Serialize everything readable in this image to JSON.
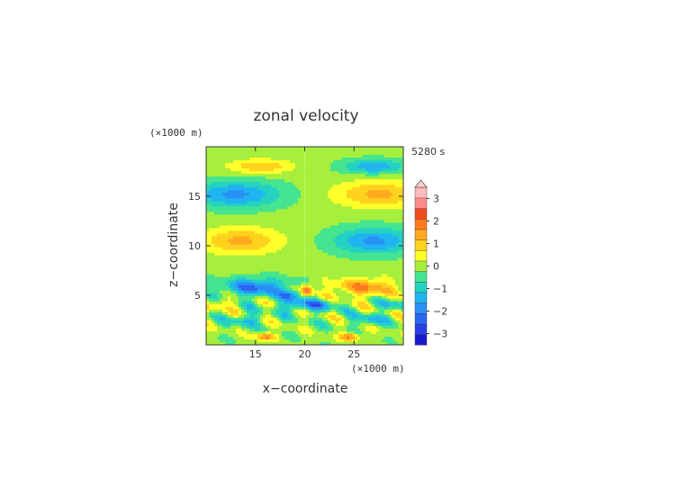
{
  "chart_data": {
    "type": "heatmap",
    "title": "zonal velocity",
    "time_label": "5280 s",
    "xlabel": "x−coordinate",
    "ylabel": "z−coordinate",
    "x_unit": "(×1000 m)",
    "y_unit": "(×1000 m)",
    "xlim": [
      10,
      30
    ],
    "ylim": [
      0,
      20
    ],
    "x_ticks": [
      15,
      20,
      25
    ],
    "y_ticks": [
      5,
      10,
      15
    ],
    "x_tick_labels": [
      "15",
      "20",
      "25"
    ],
    "y_tick_labels": [
      "5",
      "10",
      "15"
    ],
    "colorbar": {
      "levels": [
        -3.5,
        -3,
        -2.5,
        -2,
        -1.5,
        -1,
        -0.5,
        0,
        0.5,
        1,
        1.5,
        2,
        2.5,
        3,
        3.5
      ],
      "colors": [
        "#1a1acc",
        "#2a40e6",
        "#2a66f0",
        "#2a90f5",
        "#20b4f0",
        "#24d2c2",
        "#44e490",
        "#a6ef3c",
        "#ffff2a",
        "#ffd21e",
        "#ffaa1e",
        "#ff7a1e",
        "#f04a1e",
        "#ff8c8c",
        "#ffbaba"
      ],
      "tick_values": [
        3,
        2,
        1,
        0,
        -1,
        -2,
        -3
      ],
      "tick_labels": [
        "3",
        "2",
        "1",
        "0",
        "−1",
        "−2",
        "−3"
      ],
      "extend": "max"
    },
    "features": [
      {
        "x": 15.5,
        "z": 18.0,
        "sx": 3.2,
        "sz": 0.7,
        "v": 1.3
      },
      {
        "x": 27.0,
        "z": 18.0,
        "sx": 3.0,
        "sz": 0.7,
        "v": -1.6
      },
      {
        "x": 13.0,
        "z": 15.2,
        "sx": 4.5,
        "sz": 1.3,
        "v": -1.8
      },
      {
        "x": 27.5,
        "z": 15.2,
        "sx": 4.5,
        "sz": 1.3,
        "v": 1.5
      },
      {
        "x": 13.5,
        "z": 10.5,
        "sx": 4.0,
        "sz": 1.3,
        "v": 1.5
      },
      {
        "x": 27.0,
        "z": 10.5,
        "sx": 4.0,
        "sz": 1.3,
        "v": -1.8
      },
      {
        "x": 15.0,
        "z": 5.8,
        "sx": 3.2,
        "sz": 0.9,
        "v": -2.2
      },
      {
        "x": 26.0,
        "z": 5.8,
        "sx": 3.2,
        "sz": 0.9,
        "v": 1.8
      },
      {
        "x": 20.2,
        "z": 5.5,
        "sx": 0.6,
        "sz": 0.6,
        "v": 2.4
      },
      {
        "x": 18.5,
        "z": 5.0,
        "sx": 1.0,
        "sz": 0.5,
        "v": -1.8
      },
      {
        "x": 19.0,
        "z": 4.0,
        "sx": 1.5,
        "sz": 0.6,
        "v": -1.7
      },
      {
        "x": 21.5,
        "z": 4.0,
        "sx": 1.5,
        "sz": 0.6,
        "v": -1.5
      },
      {
        "x": 16.0,
        "z": 0.8,
        "sx": 1.0,
        "sz": 0.4,
        "v": 2.0
      },
      {
        "x": 24.5,
        "z": 0.8,
        "sx": 1.0,
        "sz": 0.4,
        "v": 2.0
      },
      {
        "x": 14.0,
        "z": 2.5,
        "sx": 1.6,
        "sz": 0.6,
        "v": -1.2
      },
      {
        "x": 26.5,
        "z": 2.5,
        "sx": 1.6,
        "sz": 0.6,
        "v": -1.2
      },
      {
        "x": 11.5,
        "z": 4.2,
        "sx": 1.3,
        "sz": 0.6,
        "v": 1.0
      },
      {
        "x": 29.0,
        "z": 4.0,
        "sx": 1.3,
        "sz": 0.6,
        "v": -1.0
      }
    ],
    "grid": false,
    "legend_position": "right"
  }
}
